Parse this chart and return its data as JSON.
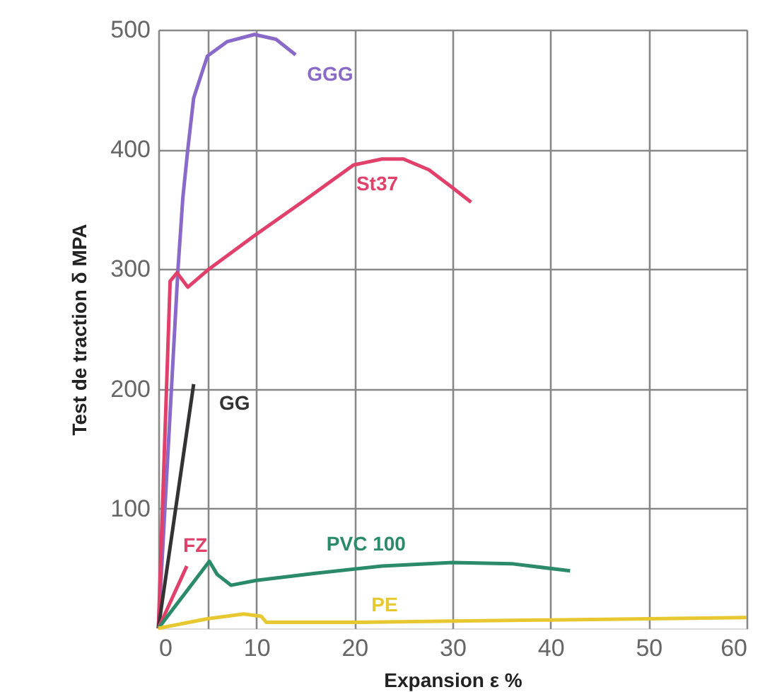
{
  "chart_data": {
    "type": "line",
    "xlabel": "Expansion ε %",
    "ylabel": "Test de traction δ MPA",
    "xlim": [
      0,
      60
    ],
    "xticks": [
      0,
      {
        "value": 5,
        "label": null
      },
      10,
      20,
      30,
      40,
      50,
      60
    ],
    "ylim": [
      0,
      500
    ],
    "yticks": [
      100,
      200,
      300,
      400,
      500
    ],
    "grid": true,
    "legend": false,
    "marker": "none",
    "line_style": "solid",
    "series": [
      {
        "name": "GGG",
        "color": "#8a6ac8",
        "x": [
          0,
          1,
          2,
          2.5,
          3,
          3.6,
          5,
          7,
          9.8,
          12,
          14
        ],
        "values": [
          0,
          150,
          300,
          360,
          400,
          443,
          478,
          490,
          496,
          492,
          479
        ]
      },
      {
        "name": "St37",
        "color": "#e0406a",
        "x": [
          0,
          1.2,
          1.9,
          3,
          5,
          9.8,
          15,
          19.9,
          22.8,
          25,
          27.6,
          30,
          31.9
        ],
        "values": [
          0,
          290,
          297,
          285,
          299,
          328,
          358,
          387,
          392,
          392,
          383,
          368,
          356
        ]
      },
      {
        "name": "GG",
        "color": "#333333",
        "x": [
          0,
          3.6
        ],
        "values": [
          0,
          204
        ]
      },
      {
        "name": "FZ",
        "color": "#e0406a",
        "x": [
          0,
          2.9
        ],
        "values": [
          0,
          52
        ]
      },
      {
        "name": "PVC 100",
        "color": "#2a8a6a",
        "x": [
          0,
          5.2,
          6,
          7.4,
          10,
          16,
          22.8,
          30,
          36,
          42
        ],
        "values": [
          0,
          56,
          45,
          36,
          40,
          46,
          52,
          55,
          54,
          48
        ]
      },
      {
        "name": "PE",
        "color": "#e8c830",
        "x": [
          0,
          5,
          8.7,
          10.5,
          11,
          20,
          30,
          40,
          50,
          60
        ],
        "values": [
          0,
          8,
          12,
          10,
          5,
          5,
          6,
          7,
          8,
          9
        ]
      }
    ]
  }
}
